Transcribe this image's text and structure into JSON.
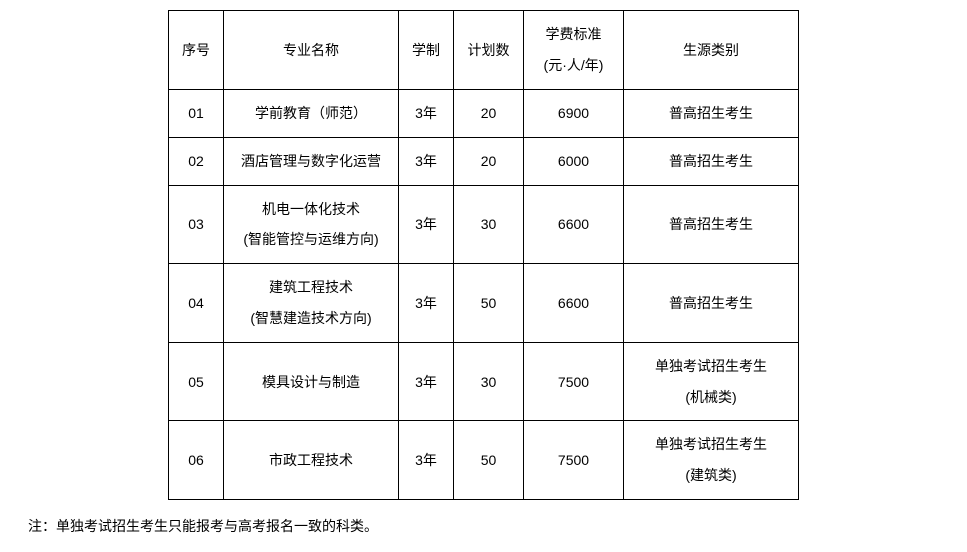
{
  "table": {
    "headers": {
      "index": "序号",
      "major": "专业名称",
      "duration": "学制",
      "plan": "计划数",
      "fee_line1": "学费标准",
      "fee_line2": "(元·人/年)",
      "source": "生源类别"
    },
    "rows": [
      {
        "index": "01",
        "major": "学前教育（师范）",
        "duration": "3年",
        "plan": "20",
        "fee": "6900",
        "source": "普高招生考生",
        "multiline_major": false,
        "multiline_source": false
      },
      {
        "index": "02",
        "major": "酒店管理与数字化运营",
        "duration": "3年",
        "plan": "20",
        "fee": "6000",
        "source": "普高招生考生",
        "multiline_major": false,
        "multiline_source": false
      },
      {
        "index": "03",
        "major_line1": "机电一体化技术",
        "major_line2": "(智能管控与运维方向)",
        "duration": "3年",
        "plan": "30",
        "fee": "6600",
        "source": "普高招生考生",
        "multiline_major": true,
        "multiline_source": false
      },
      {
        "index": "04",
        "major_line1": "建筑工程技术",
        "major_line2": "(智慧建造技术方向)",
        "duration": "3年",
        "plan": "50",
        "fee": "6600",
        "source": "普高招生考生",
        "multiline_major": true,
        "multiline_source": false
      },
      {
        "index": "05",
        "major": "模具设计与制造",
        "duration": "3年",
        "plan": "30",
        "fee": "7500",
        "source_line1": "单独考试招生考生",
        "source_line2": "(机械类)",
        "multiline_major": false,
        "multiline_source": true
      },
      {
        "index": "06",
        "major": "市政工程技术",
        "duration": "3年",
        "plan": "50",
        "fee": "7500",
        "source_line1": "单独考试招生考生",
        "source_line2": "(建筑类)",
        "multiline_major": false,
        "multiline_source": true
      }
    ]
  },
  "footnote": "注：单独考试招生考生只能报考与高考报名一致的科类。",
  "styling": {
    "border_color": "#000000",
    "background_color": "#ffffff",
    "text_color": "#000000",
    "font_size": 14,
    "col_widths": {
      "index": 55,
      "major": 175,
      "duration": 55,
      "plan": 70,
      "fee": 100,
      "source": 175
    },
    "row_heights": {
      "header": 62,
      "single": 48,
      "multi": 78
    }
  }
}
